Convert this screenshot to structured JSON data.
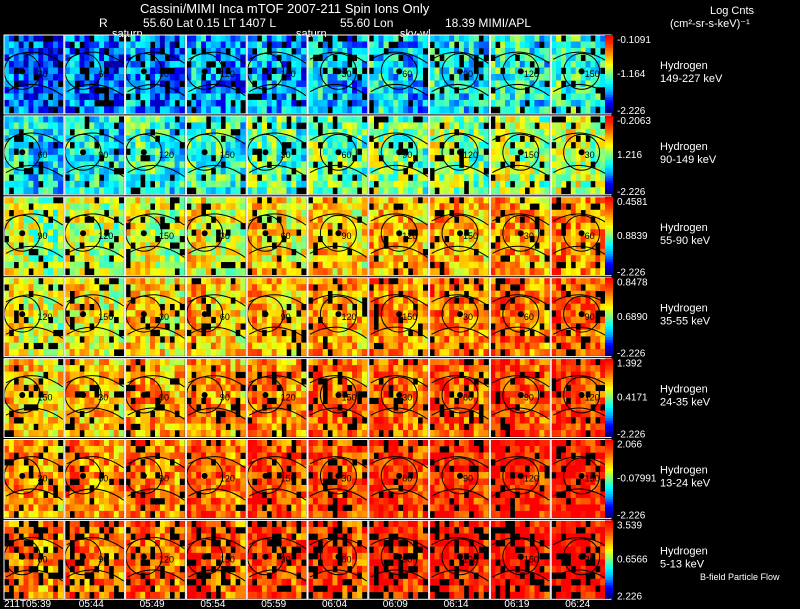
{
  "header": {
    "title_line1": "Cassini/MIMI Inca mTOF  2007-211   Spin   Ions Only",
    "r_label": "R",
    "position_line": "55.60 Lat 0.15 LT 1407 L",
    "lon_label": "55.60 Lon",
    "mission_label": "18.39  MIMI/APL",
    "overlay_labels": [
      "saturn",
      "saturn",
      "sky-wl"
    ],
    "units_line1": "Log Cnts",
    "units_line2": "(cm²-sr-s-keV)⁻¹"
  },
  "footer": {
    "legend_text": "B-field Particle Flow"
  },
  "chart_data": {
    "type": "heatmap",
    "description_title": "Cassini/MIMI Inca mTOF  2007-211   Spin   Ions Only",
    "times": [
      "211T05:39",
      "05:44",
      "05:49",
      "05:54",
      "05:59",
      "06:04",
      "06:09",
      "06:14",
      "06:19",
      "06:24"
    ],
    "channels": [
      {
        "species": "Hydrogen",
        "energy": "149-227 keV",
        "cb_max": "-0.1091",
        "cb_mid": "-1.164",
        "cb_min": "-2.226",
        "level": 0.18
      },
      {
        "species": "Hydrogen",
        "energy": "90-149 keV",
        "cb_max": "-0.2063",
        "cb_mid": "1.216",
        "cb_min": "-2.226",
        "level": 0.35
      },
      {
        "species": "Hydrogen",
        "energy": "55-90 keV",
        "cb_max": "0.4581",
        "cb_mid": "0.8839",
        "cb_min": "-2.226",
        "level": 0.55
      },
      {
        "species": "Hydrogen",
        "energy": "35-55 keV",
        "cb_max": "0.8478",
        "cb_mid": "0.6890",
        "cb_min": "-2.226",
        "level": 0.62
      },
      {
        "species": "Hydrogen",
        "energy": "24-35 keV",
        "cb_max": "1.392",
        "cb_mid": "0.4171",
        "cb_min": "-2.226",
        "level": 0.68
      },
      {
        "species": "Hydrogen",
        "energy": "13-24 keV",
        "cb_max": "2.066",
        "cb_mid": "-0.07991",
        "cb_min": "-2.226",
        "level": 0.75
      },
      {
        "species": "Hydrogen",
        "energy": "5-13 keV",
        "cb_max": "3.539",
        "cb_mid": "0.6566",
        "cb_min": "2.226",
        "level": 0.78
      }
    ],
    "contour_labels": [
      "30",
      "60",
      "90",
      "120",
      "150"
    ],
    "colorscale": [
      "#000080",
      "#0000ff",
      "#00a0ff",
      "#00ffff",
      "#80ff80",
      "#ffff00",
      "#ffa000",
      "#ff4000",
      "#ff0000"
    ]
  }
}
